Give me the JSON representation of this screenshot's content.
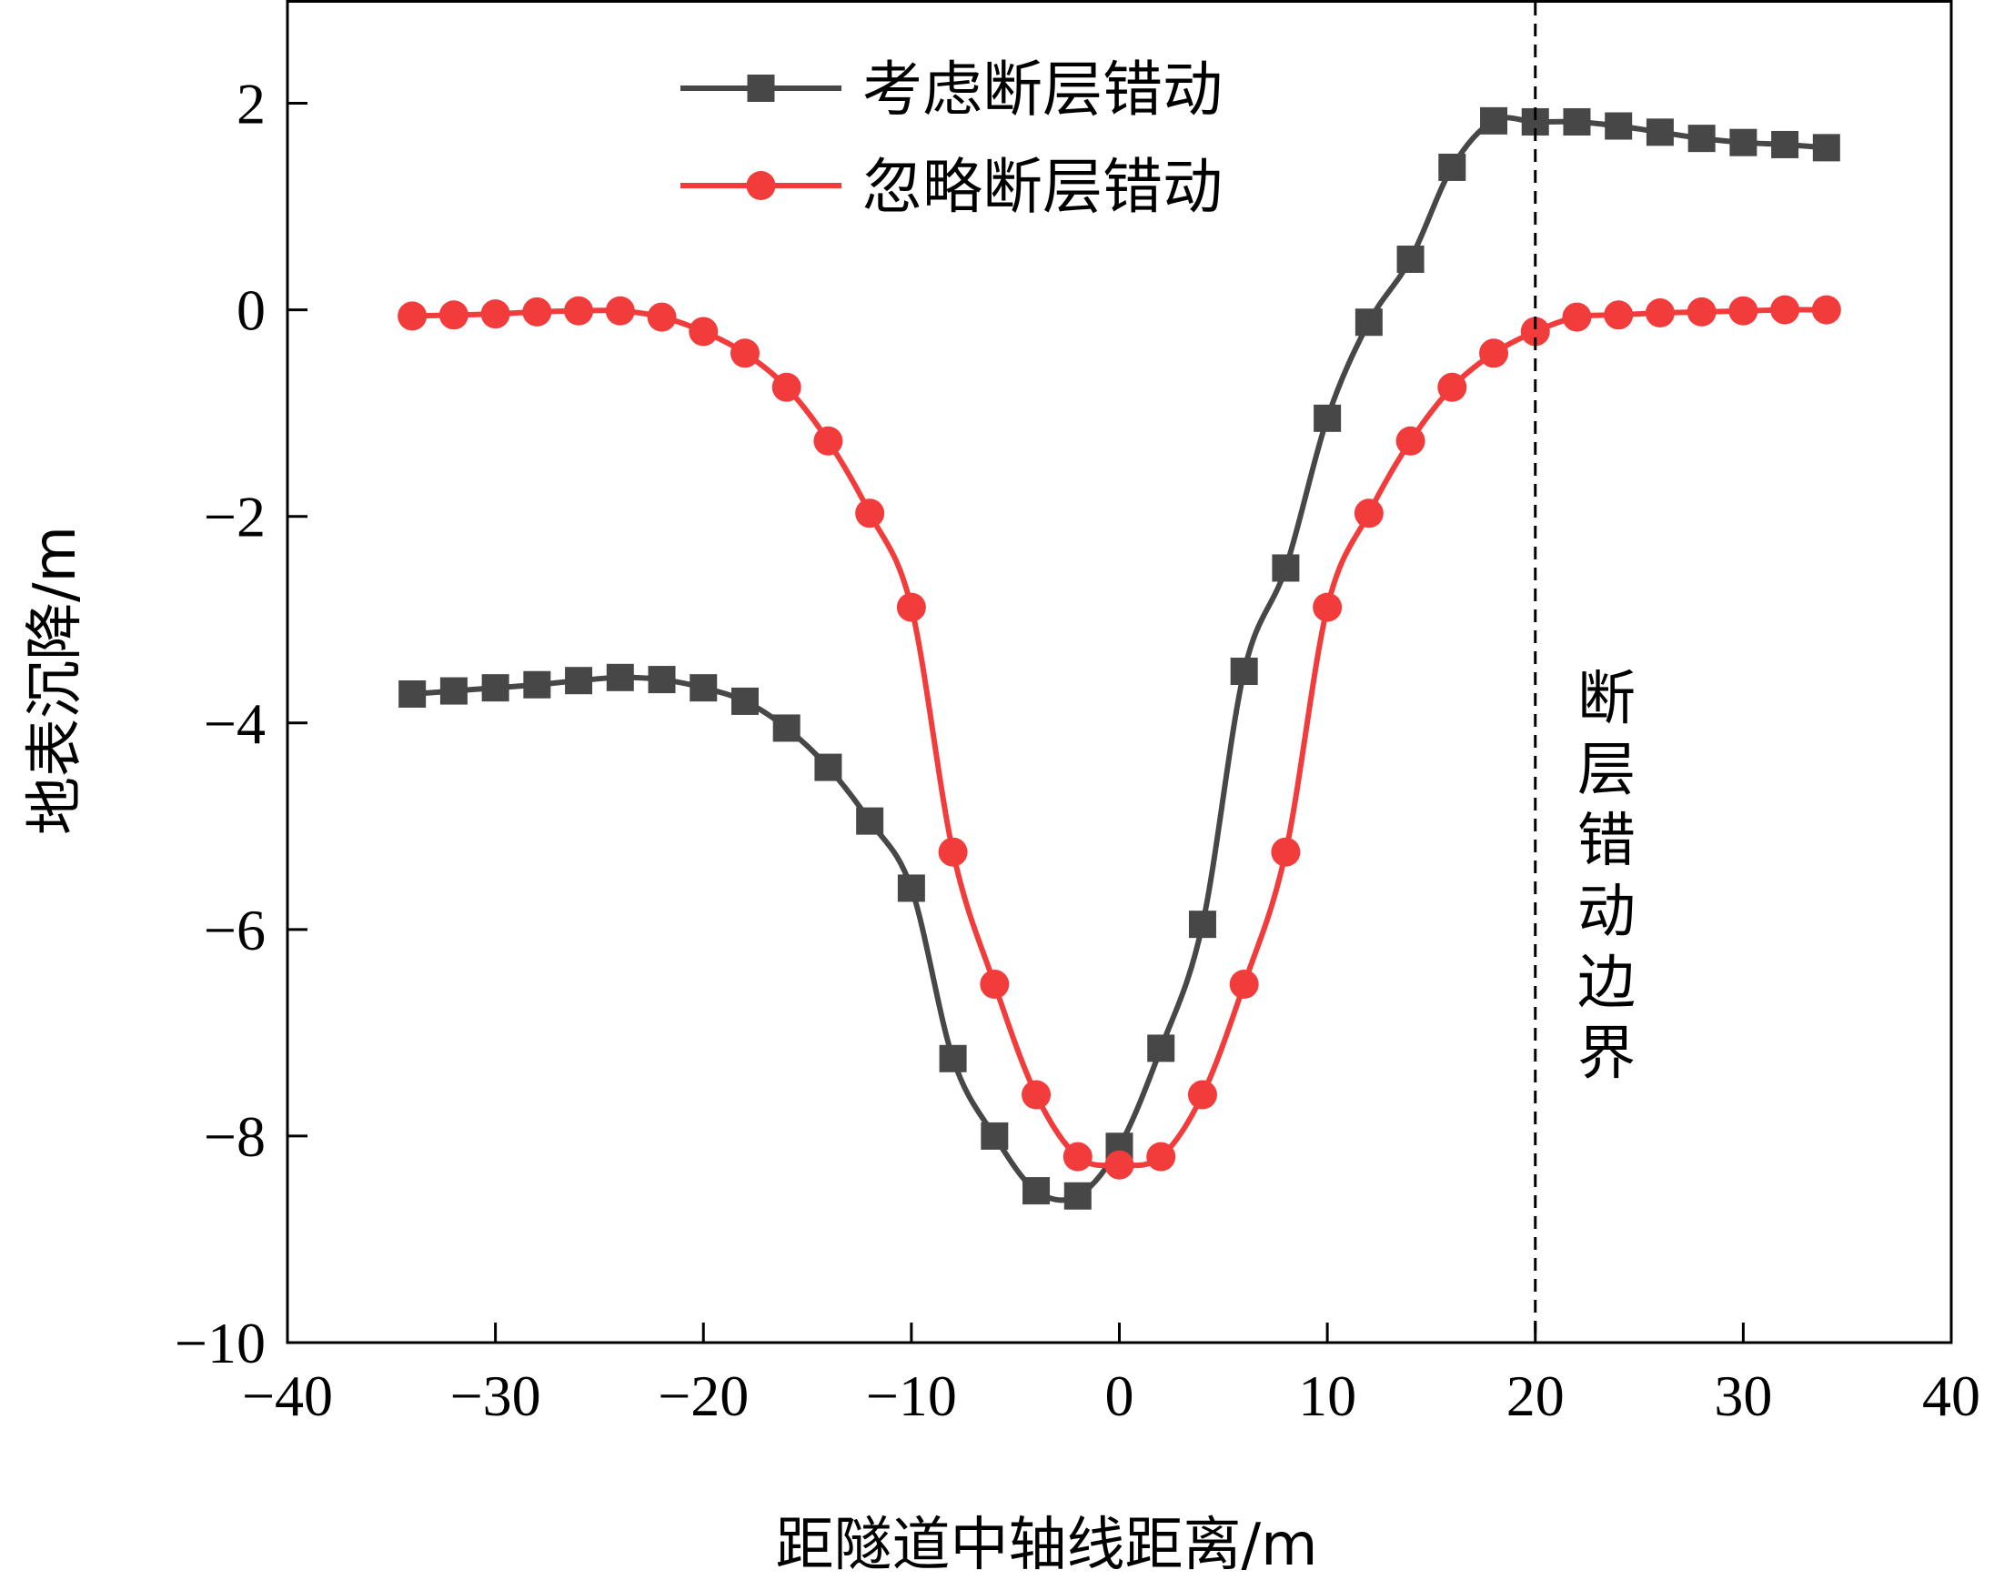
{
  "chart_data": {
    "type": "line",
    "title": "",
    "xlabel": "距隧道中轴线距离/m",
    "ylabel": "地表沉降/m",
    "xlim": [
      -40,
      40
    ],
    "ylim": [
      -10,
      3
    ],
    "xticks": [
      -40,
      -30,
      -20,
      -10,
      0,
      10,
      20,
      30,
      40
    ],
    "yticks": [
      -10,
      -8,
      -6,
      -4,
      -2,
      0,
      2
    ],
    "xtick_labels": [
      "−40",
      "−30",
      "−20",
      "−10",
      "0",
      "10",
      "20",
      "30",
      "40"
    ],
    "ytick_labels": [
      "−10",
      "−8",
      "−6",
      "−4",
      "−2",
      "0",
      "2"
    ],
    "grid": false,
    "legend_position": "top-center",
    "x": [
      -34,
      -32,
      -30,
      -28,
      -26,
      -24,
      -22,
      -20,
      -18,
      -16,
      -14,
      -12,
      -10,
      -8,
      -6,
      -4,
      -2,
      0,
      2,
      4,
      6,
      8,
      10,
      12,
      14,
      16,
      18,
      20,
      22,
      24,
      26,
      28,
      30,
      32,
      34
    ],
    "series": [
      {
        "name": "考虑断层错动",
        "color": "#474747",
        "marker": "square",
        "values": [
          -3.72,
          -3.69,
          -3.66,
          -3.63,
          -3.59,
          -3.56,
          -3.58,
          -3.66,
          -3.79,
          -4.05,
          -4.43,
          -4.95,
          -5.6,
          -7.25,
          -8.0,
          -8.53,
          -8.58,
          -8.1,
          -7.15,
          -5.95,
          -3.5,
          -2.5,
          -1.05,
          -0.12,
          0.49,
          1.38,
          1.83,
          1.82,
          1.82,
          1.78,
          1.72,
          1.66,
          1.62,
          1.6,
          1.57
        ]
      },
      {
        "name": "忽略断层错动",
        "color": "#f23b3b",
        "marker": "circle",
        "values": [
          -0.06,
          -0.05,
          -0.04,
          -0.02,
          -0.01,
          -0.01,
          -0.07,
          -0.21,
          -0.42,
          -0.75,
          -1.27,
          -1.97,
          -2.88,
          -5.25,
          -6.53,
          -7.6,
          -8.2,
          -8.28,
          -8.2,
          -7.6,
          -6.53,
          -5.25,
          -2.88,
          -1.97,
          -1.27,
          -0.75,
          -0.42,
          -0.21,
          -0.07,
          -0.05,
          -0.03,
          -0.02,
          -0.01,
          0.0,
          0.0
        ]
      }
    ],
    "annotations": [
      {
        "type": "vline",
        "x": 20,
        "style": "dashed",
        "label": "断层错动边界"
      }
    ]
  }
}
